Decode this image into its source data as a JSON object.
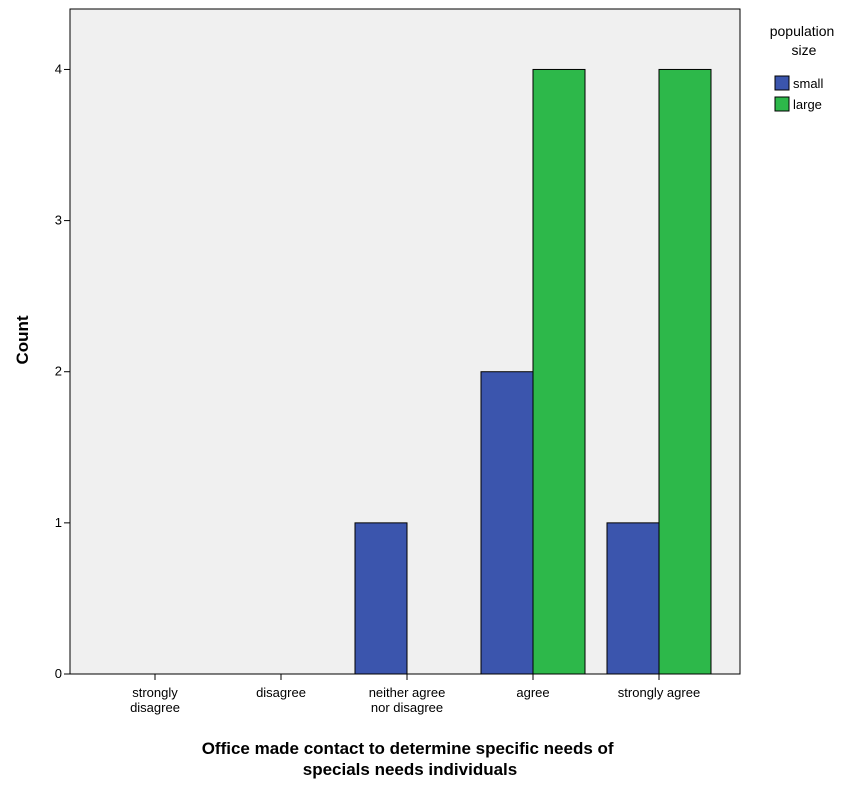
{
  "chart_data": {
    "type": "bar",
    "categories": [
      [
        "strongly",
        "disagree"
      ],
      [
        "disagree"
      ],
      [
        "neither agree",
        "nor disagree"
      ],
      [
        "agree"
      ],
      [
        "strongly agree"
      ]
    ],
    "series": [
      {
        "name": "small",
        "color": "#3B55AD",
        "values": [
          0,
          0,
          1,
          2,
          1
        ]
      },
      {
        "name": "large",
        "color": "#2DB84A",
        "values": [
          0,
          0,
          0,
          4,
          4
        ]
      }
    ],
    "ylim": [
      0,
      4.4
    ],
    "yticks": [
      0,
      1,
      2,
      3,
      4
    ],
    "ylabel": "Count",
    "xlabel": [
      "Office made contact to determine specific needs of",
      "specials needs individuals"
    ],
    "legend": {
      "title": [
        "population",
        "size"
      ],
      "placement": "right"
    },
    "plot_background": "#F0F0F0",
    "grid": false
  }
}
